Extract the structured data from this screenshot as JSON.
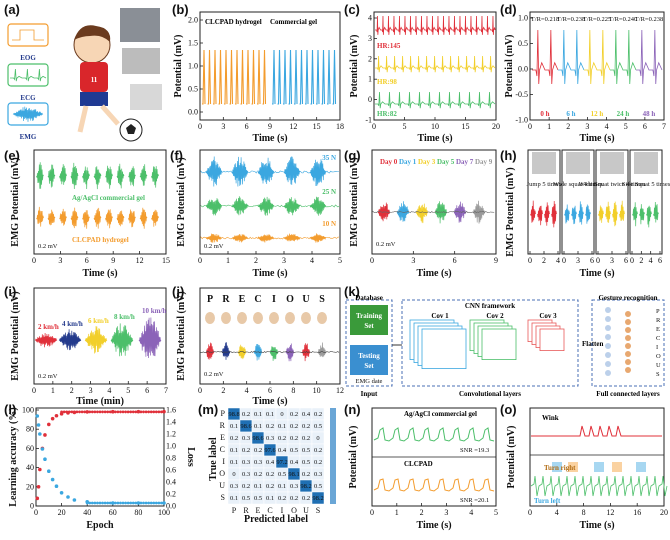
{
  "colors": {
    "orange": "#f39c2e",
    "blue": "#3ba7e0",
    "green": "#4cbf6a",
    "red": "#e0303a",
    "yellow": "#f2cf2a",
    "purple": "#8b63b8",
    "grey": "#9a9a9a",
    "navy": "#233a8c"
  },
  "panels": {
    "a": {
      "letter": "(a)",
      "labels": [
        "EOG",
        "ECG",
        "EMG"
      ]
    },
    "b": {
      "letter": "(b)",
      "ylabel": "Potential (mV)",
      "xlabel": "Time (s)",
      "yticks": [
        "0.0",
        "0.5",
        "1.0",
        "1.5",
        "2.0"
      ],
      "xticks": [
        "0",
        "3",
        "6",
        "9",
        "12",
        "15",
        "18"
      ],
      "legend_left": "CLCPAD hydrogel",
      "legend_right": "Commercial gel"
    },
    "c": {
      "letter": "(c)",
      "ylabel": "Potential (mV)",
      "xlabel": "Time (s)",
      "yticks": [
        "-1",
        "0",
        "1",
        "2",
        "3",
        "4"
      ],
      "xticks": [
        "0",
        "5",
        "10",
        "15",
        "20"
      ],
      "hr": [
        "HR:145",
        "HR:98",
        "HR:82"
      ]
    },
    "d": {
      "letter": "(d)",
      "ylabel": "Potential (mV)",
      "xlabel": "Time (s)",
      "yticks": [
        "-1.0",
        "-0.5",
        "0.0",
        "0.5",
        "1.0"
      ],
      "xticks": [
        "0",
        "1",
        "2",
        "3",
        "4",
        "5",
        "6",
        "7"
      ],
      "tags": [
        "0 h",
        "6 h",
        "12 h",
        "24 h",
        "48 h"
      ],
      "snr": [
        "T/R=0.218",
        "T/R=0.238",
        "T/R=0.225",
        "T/R=0.240",
        "T/R=0.238"
      ]
    },
    "e": {
      "letter": "(e)",
      "ylabel": "EMG Potential (mV)",
      "xlabel": "Time (s)",
      "xticks": [
        "0",
        "3",
        "6",
        "9",
        "12",
        "15"
      ],
      "label_top": "Ag/AgCl commercial gel",
      "label_bottom": "CLCPAD hydrogel",
      "scale": "0.2 mV"
    },
    "f": {
      "letter": "(f)",
      "ylabel": "EMG Potential (mV)",
      "xlabel": "Time (s)",
      "xticks": [
        "0",
        "1",
        "2",
        "3",
        "4",
        "5"
      ],
      "levels": [
        "35 N",
        "25 N",
        "10 N"
      ],
      "scale": "0.2 mV"
    },
    "g": {
      "letter": "(g)",
      "ylabel": "EMG Potential (mV)",
      "xlabel": "Time (s)",
      "xticks": [
        "0",
        "3",
        "6",
        "9"
      ],
      "days": [
        "Day 0",
        "Day 1",
        "Day 3",
        "Day 5",
        "Day 7",
        "Day 9"
      ],
      "scale": "0.2 mV"
    },
    "h": {
      "letter": "(h)",
      "ylabel": "EMG Potential (mV)",
      "xlabel": "Time (s)",
      "tick_groups": [
        [
          "0",
          "2",
          "4"
        ],
        [
          "0",
          "3",
          "6"
        ],
        [
          "0",
          "3",
          "6"
        ],
        [
          "0",
          "2",
          "4",
          "6"
        ]
      ],
      "actions": [
        "Jump 5 times",
        "Wide squat 4 times",
        "Wide Squat twice 4 times",
        "Side Squat 5 times"
      ]
    },
    "i": {
      "letter": "(i)",
      "ylabel": "EMG Potential (mV)",
      "xlabel": "Time (min)",
      "xticks": [
        "0",
        "1",
        "2",
        "3",
        "4",
        "5",
        "6",
        "7"
      ],
      "speeds": [
        "2 km/h",
        "4 km/h",
        "6 km/h",
        "8 km/h",
        "10 km/h"
      ],
      "scale": "0.2 mV"
    },
    "j": {
      "letter": "(j)",
      "ylabel": "EMG Potential (mV)",
      "xlabel": "Time (s)",
      "xticks": [
        "0",
        "2",
        "4",
        "6",
        "8",
        "10",
        "12"
      ],
      "letters": [
        "P",
        "R",
        "E",
        "C",
        "I",
        "O",
        "U",
        "S"
      ],
      "scale": "0.2 mV"
    },
    "k": {
      "letter": "(k)",
      "database": "Database",
      "training": "Training Set (80%)",
      "testing": "Testing Set (20%)",
      "emg": "EMG date",
      "input": "Input",
      "cnn": "CNN framework",
      "cov1": "Cov 1",
      "cov2": "Cov 2",
      "cov3": "Cov 3",
      "conv_layers": "Convolutional layers",
      "flatten": "Flatten",
      "gesture": "Gesture recognition",
      "fc": "Full connected layers",
      "outputs": [
        "P",
        "R",
        "E",
        "C",
        "I",
        "O",
        "U",
        "S"
      ]
    },
    "l": {
      "letter": "(l)",
      "ylabel": "Learning accuracy (%)",
      "ylabel2": "Loss",
      "xlabel": "Epoch",
      "yticks": [
        "0",
        "20",
        "40",
        "60",
        "80",
        "100"
      ],
      "y2ticks": [
        "0.0",
        "0.2",
        "0.4",
        "0.6",
        "0.8",
        "1.0",
        "1.2",
        "1.4",
        "1.6"
      ],
      "xticks": [
        "0",
        "20",
        "40",
        "60",
        "80",
        "100"
      ]
    },
    "m": {
      "letter": "(m)",
      "ylabel": "True label",
      "xlabel": "Predicted label",
      "labels": [
        "P",
        "R",
        "E",
        "C",
        "I",
        "O",
        "U",
        "S"
      ],
      "matrix": [
        [
          "98.8",
          "0.2",
          "0.1",
          "0.1",
          "0",
          "0.2",
          "0.4",
          "0.2"
        ],
        [
          "0.1",
          "98.6",
          "0.1",
          "0.2",
          "0.1",
          "0.2",
          "0.2",
          "0.5"
        ],
        [
          "0.2",
          "0.3",
          "98.6",
          "0.3",
          "0.2",
          "0.2",
          "0.2",
          "0"
        ],
        [
          "0.1",
          "0.2",
          "0.2",
          "97.6",
          "0.4",
          "0.5",
          "0.5",
          "0.2"
        ],
        [
          "0.1",
          "0.3",
          "0.3",
          "0.4",
          "97.2",
          "0.4",
          "0.5",
          "0.2"
        ],
        [
          "0",
          "0.3",
          "0.2",
          "0.2",
          "0.5",
          "98.1",
          "0.2",
          "0.3"
        ],
        [
          "0.3",
          "0.2",
          "0.1",
          "0.2",
          "0.1",
          "0.3",
          "98.2",
          "0.5"
        ],
        [
          "0.1",
          "0.5",
          "0.5",
          "0.1",
          "0.2",
          "0.2",
          "0.2",
          "98.2"
        ]
      ]
    },
    "n": {
      "letter": "(n)",
      "ylabel": "Potential (mV)",
      "xlabel": "Time (s)",
      "xticks": [
        "0",
        "1",
        "2",
        "3",
        "4",
        "5"
      ],
      "label_top": "Ag/AgCl commercial gel",
      "label_bottom": "CLCPAD",
      "snr_top": "SNR =19.3",
      "snr_bottom": "SNR =20.1"
    },
    "o": {
      "letter": "(o)",
      "ylabel": "Potential (mV)",
      "xlabel": "Time (s)",
      "xticks": [
        "0",
        "4",
        "8",
        "12",
        "16",
        "20"
      ],
      "wink": "Wink",
      "turn_right": "Turn right",
      "turn_left": "Turn left"
    }
  },
  "chart_data": [
    {
      "panel": "b",
      "type": "line",
      "title": "",
      "xlabel": "Time (s)",
      "ylabel": "Potential (mV)",
      "ylim": [
        -0.2,
        2.2
      ],
      "xlim": [
        0,
        18
      ],
      "series": [
        {
          "name": "CLCPAD hydrogel",
          "x_range": [
            0,
            9
          ],
          "period": 0.75,
          "peak": 1.9,
          "min": 0.0
        },
        {
          "name": "Commercial gel",
          "x_range": [
            9,
            18
          ],
          "period": 0.75,
          "peak": 1.9,
          "min": 0.0
        }
      ]
    },
    {
      "panel": "d",
      "type": "line",
      "xlabel": "Time (s)",
      "ylabel": "Potential (mV)",
      "ylim": [
        -1,
        1
      ],
      "xlim": [
        0,
        7.5
      ],
      "series": [
        {
          "name": "0 h",
          "peak": 0.8
        },
        {
          "name": "6 h",
          "peak": 0.8
        },
        {
          "name": "12 h",
          "peak": 0.8
        },
        {
          "name": "24 h",
          "peak": 0.8
        },
        {
          "name": "48 h",
          "peak": 0.8
        }
      ]
    },
    {
      "panel": "l",
      "type": "line",
      "xlabel": "Epoch",
      "ylabel": "Learning accuracy (%)",
      "ylabel2": "Loss",
      "xlim": [
        0,
        100
      ],
      "ylim": [
        0,
        100
      ],
      "y2lim": [
        0,
        1.6
      ],
      "series": [
        {
          "name": "Learning accuracy",
          "x": [
            1,
            2,
            3,
            5,
            7,
            10,
            13,
            16,
            20,
            25,
            30,
            40,
            60,
            80,
            100
          ],
          "values": [
            8,
            20,
            38,
            60,
            74,
            85,
            91,
            94,
            96,
            97,
            97.5,
            98,
            98.2,
            98.3,
            98.3
          ]
        },
        {
          "name": "Loss",
          "x": [
            1,
            2,
            3,
            5,
            7,
            10,
            13,
            16,
            20,
            25,
            30,
            40,
            60,
            80,
            100
          ],
          "values": [
            1.5,
            1.35,
            1.2,
            0.95,
            0.78,
            0.58,
            0.44,
            0.33,
            0.22,
            0.15,
            0.1,
            0.07,
            0.05,
            0.05,
            0.05
          ]
        }
      ]
    },
    {
      "panel": "m",
      "type": "heatmap",
      "xlabel": "Predicted label",
      "ylabel": "True label",
      "categories": [
        "P",
        "R",
        "E",
        "C",
        "I",
        "O",
        "U",
        "S"
      ]
    }
  ]
}
